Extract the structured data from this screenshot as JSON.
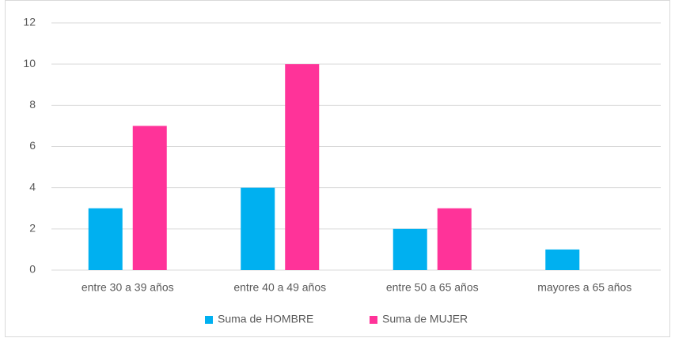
{
  "chart_data": {
    "type": "bar",
    "categories": [
      "entre 30 a 39 años",
      "entre 40 a 49 años",
      "entre 50 a 65 años",
      "mayores a 65 años"
    ],
    "series": [
      {
        "name": "Suma de HOMBRE",
        "color": "#00b0f0",
        "values": [
          3,
          4,
          2,
          1
        ]
      },
      {
        "name": "Suma de MUJER",
        "color": "#ff3399",
        "values": [
          7,
          10,
          3,
          0
        ]
      }
    ],
    "ylim": [
      0,
      12
    ],
    "yticks": [
      0,
      2,
      4,
      6,
      8,
      10,
      12
    ],
    "grid": true,
    "legend": "bottom"
  }
}
